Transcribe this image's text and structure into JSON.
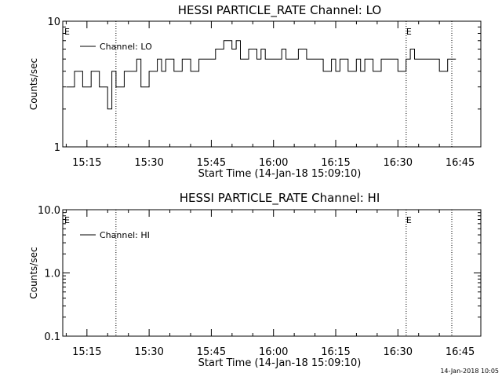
{
  "footer": "14-Jan-2018 10:05",
  "chart_data": [
    {
      "type": "line",
      "title": "HESSI PARTICLE_RATE Channel: LO",
      "xlabel": "Start Time (14-Jan-18 15:09:10)",
      "ylabel": "Counts/sec",
      "yscale": "log",
      "ylim": [
        1,
        10
      ],
      "yticks": [
        "1",
        "10"
      ],
      "xlim_minutes": [
        15.167,
        16.833
      ],
      "xticks": [
        "15:15",
        "15:30",
        "15:45",
        "16:00",
        "16:15",
        "16:30",
        "16:45"
      ],
      "legend": "Channel: LO",
      "legend_placement": "top-left",
      "event_markers": [
        {
          "label": "E",
          "time": "15:09"
        },
        {
          "label": "",
          "time": "15:22"
        },
        {
          "label": "E",
          "time": "16:32"
        },
        {
          "label": "",
          "time": "16:43"
        }
      ],
      "series": [
        {
          "name": "Channel: LO",
          "x": [
            15.167,
            15.2,
            15.233,
            15.25,
            15.267,
            15.3,
            15.333,
            15.35,
            15.367,
            15.4,
            15.433,
            15.45,
            15.467,
            15.5,
            15.533,
            15.55,
            15.567,
            15.6,
            15.633,
            15.65,
            15.667,
            15.7,
            15.733,
            15.75,
            15.767,
            15.8,
            15.833,
            15.85,
            15.867,
            15.9,
            15.933,
            15.95,
            15.967,
            16.0,
            16.033,
            16.05,
            16.067,
            16.1,
            16.133,
            16.15,
            16.167,
            16.2,
            16.233,
            16.25,
            16.267,
            16.3,
            16.333,
            16.35,
            16.367,
            16.4,
            16.433,
            16.45,
            16.467,
            16.5,
            16.533,
            16.55,
            16.567,
            16.6,
            16.633,
            16.65,
            16.667,
            16.7,
            16.733
          ],
          "y": [
            3,
            4,
            3,
            3,
            4,
            3,
            2,
            4,
            3,
            4,
            4,
            5,
            3,
            4,
            5,
            4,
            5,
            4,
            5,
            5,
            4,
            5,
            5,
            5,
            6,
            7,
            6,
            7,
            5,
            6,
            5,
            6,
            5,
            5,
            6,
            5,
            5,
            6,
            5,
            5,
            5,
            4,
            5,
            4,
            5,
            4,
            5,
            4,
            5,
            4,
            5,
            5,
            5,
            4,
            5,
            6,
            5,
            5,
            5,
            5,
            4,
            5,
            5
          ]
        }
      ]
    },
    {
      "type": "line",
      "title": "HESSI PARTICLE_RATE Channel: HI",
      "xlabel": "Start Time (14-Jan-18 15:09:10)",
      "ylabel": "Counts/sec",
      "yscale": "log",
      "ylim": [
        0.1,
        10
      ],
      "yticks": [
        "0.1",
        "1.0",
        "10.0"
      ],
      "xticks": [
        "15:15",
        "15:30",
        "15:45",
        "16:00",
        "16:15",
        "16:30",
        "16:45"
      ],
      "legend": "Channel: HI",
      "legend_placement": "top-left",
      "event_markers": [
        {
          "label": "E",
          "time": "15:09"
        },
        {
          "label": "",
          "time": "15:22"
        },
        {
          "label": "E",
          "time": "16:32"
        },
        {
          "label": "",
          "time": "16:43"
        }
      ],
      "series": []
    }
  ]
}
